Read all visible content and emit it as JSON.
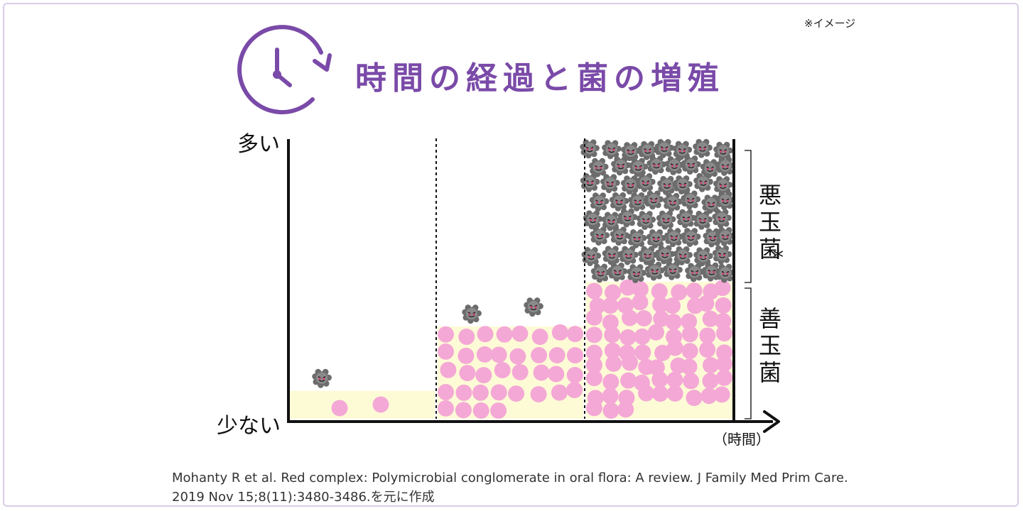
{
  "note": "※イメージ",
  "title": "時間の経過と菌の増殖",
  "y_axis": {
    "high": "多い",
    "low": "少ない"
  },
  "x_axis": {
    "label": "（時間）"
  },
  "legend": {
    "bad": "悪玉菌",
    "bad_mark": "*",
    "good": "善玉菌"
  },
  "citation": {
    "line1": "Mohanty R et al. Red complex: Polymicrobial conglomerate in oral flora: A review. J Family Med Prim Care.",
    "line2": "2019 Nov 15;8(11):3480-3486.を元に作成"
  },
  "colors": {
    "title": "#7a4aa8",
    "good_bacteria": "#f4a8d6",
    "good_band": "#fdfbd6",
    "bad_bacteria": "#707070",
    "axis": "#111111"
  },
  "icons": {
    "title_icon": "clock-cycle-icon",
    "good": "pink-circle-icon",
    "bad": "spiky-bacteria-icon"
  },
  "stages": [
    {
      "stage": 1,
      "good_level": 0.1,
      "good_count": 2,
      "bad_count": 1
    },
    {
      "stage": 2,
      "good_level": 0.33,
      "good_count": 36,
      "bad_count": 2
    },
    {
      "stage": 3,
      "good_level": 0.49,
      "good_count": 75,
      "bad_count": 64
    }
  ]
}
